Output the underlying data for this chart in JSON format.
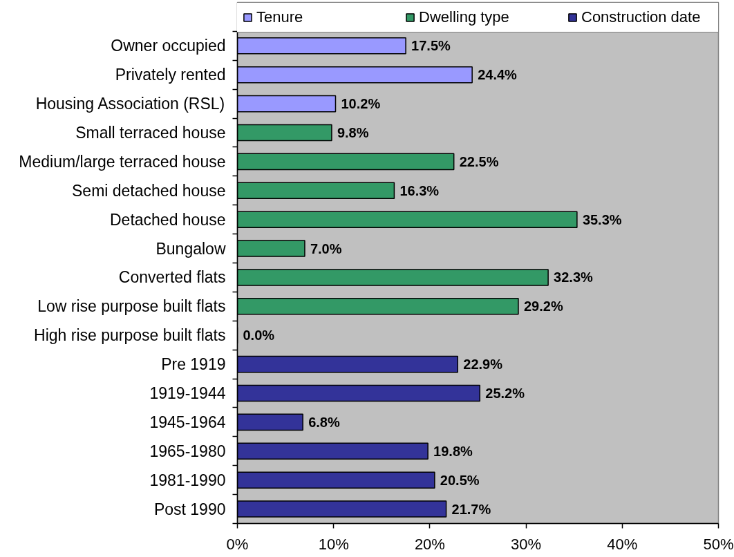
{
  "chart_data": {
    "type": "bar",
    "orientation": "horizontal",
    "stacked": true,
    "legend": "top",
    "categories": [
      "Owner occupied",
      "Privately rented",
      "Housing Association (RSL)",
      "Small terraced house",
      "Medium/large terraced house",
      "Semi detached house",
      "Detached house",
      "Bungalow",
      "Converted flats",
      "Low rise purpose built flats",
      "High rise purpose built flats",
      "Pre 1919",
      "1919-1944",
      "1945-1964",
      "1965-1980",
      "1981-1990",
      "Post 1990"
    ],
    "series": [
      {
        "name": "Tenure",
        "color": "#9999ff",
        "values": [
          17.5,
          24.4,
          10.2,
          null,
          null,
          null,
          null,
          null,
          null,
          null,
          null,
          null,
          null,
          null,
          null,
          null,
          null
        ],
        "value_labels": [
          "17.5%",
          "24.4%",
          "10.2%",
          null,
          null,
          null,
          null,
          null,
          null,
          null,
          null,
          null,
          null,
          null,
          null,
          null,
          null
        ]
      },
      {
        "name": "Dwelling type",
        "color": "#339966",
        "values": [
          null,
          null,
          null,
          9.8,
          22.5,
          16.3,
          35.3,
          7.0,
          32.3,
          29.2,
          0.0,
          null,
          null,
          null,
          null,
          null,
          null
        ],
        "value_labels": [
          null,
          null,
          null,
          "9.8%",
          "22.5%",
          "16.3%",
          "35.3%",
          "7.0%",
          "32.3%",
          "29.2%",
          "0.0%",
          null,
          null,
          null,
          null,
          null,
          null
        ]
      },
      {
        "name": "Construction date",
        "color": "#333399",
        "values": [
          null,
          null,
          null,
          null,
          null,
          null,
          null,
          null,
          null,
          null,
          null,
          22.9,
          25.2,
          6.8,
          19.8,
          20.5,
          21.7
        ],
        "value_labels": [
          null,
          null,
          null,
          null,
          null,
          null,
          null,
          null,
          null,
          null,
          null,
          "22.9%",
          "25.2%",
          "6.8%",
          "19.8%",
          "20.5%",
          "21.7%"
        ]
      }
    ],
    "xlim": [
      0,
      50
    ],
    "xticks": [
      {
        "value": 0,
        "label": "0%"
      },
      {
        "value": 10,
        "label": "10%"
      },
      {
        "value": 20,
        "label": "20%"
      },
      {
        "value": 30,
        "label": "30%"
      },
      {
        "value": 40,
        "label": "40%"
      },
      {
        "value": 50,
        "label": "50%"
      }
    ]
  }
}
